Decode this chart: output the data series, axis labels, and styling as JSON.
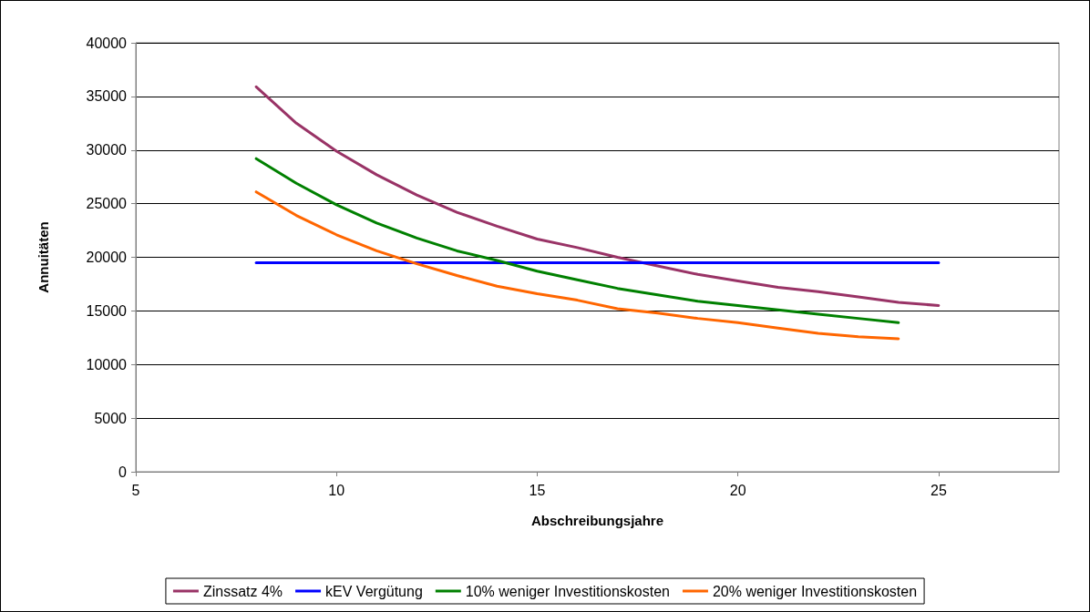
{
  "chart_data": {
    "type": "line",
    "xlabel": "Abschreibungsjahre",
    "ylabel": "Annuitäten",
    "x": [
      8,
      9,
      10,
      11,
      12,
      13,
      14,
      15,
      16,
      17,
      18,
      19,
      20,
      21,
      22,
      23,
      24,
      25
    ],
    "series": [
      {
        "name": "Zinssatz 4%",
        "color": "#993366",
        "values": [
          35900,
          32500,
          29900,
          27700,
          25800,
          24200,
          22900,
          21700,
          20900,
          20000,
          19200,
          18400,
          17800,
          17200,
          16800,
          16300,
          15800,
          15500
        ]
      },
      {
        "name": "kEV Vergütung",
        "color": "#0000ff",
        "values": [
          19500,
          19500,
          19500,
          19500,
          19500,
          19500,
          19500,
          19500,
          19500,
          19500,
          19500,
          19500,
          19500,
          19500,
          19500,
          19500,
          19500,
          19500
        ]
      },
      {
        "name": "10% weniger Investitionskosten",
        "color": "#008000",
        "values": [
          29200,
          26900,
          24900,
          23200,
          21800,
          20600,
          19700,
          18700,
          17900,
          17100,
          16500,
          15900,
          15500,
          15100,
          14700,
          14300,
          13900,
          null
        ]
      },
      {
        "name": "20% weniger Investitionskosten",
        "color": "#ff6600",
        "values": [
          26100,
          23900,
          22100,
          20600,
          19400,
          18300,
          17300,
          16600,
          16000,
          15200,
          14800,
          14300,
          13900,
          13400,
          12900,
          12600,
          12400,
          null
        ]
      }
    ],
    "xlim": [
      5,
      28
    ],
    "xticks": [
      5,
      10,
      15,
      20,
      25
    ],
    "ylim": [
      0,
      40000
    ],
    "yticks": [
      0,
      5000,
      10000,
      15000,
      20000,
      25000,
      30000,
      35000,
      40000
    ],
    "grid": "y",
    "legend": "bottom",
    "marker": "none",
    "line_style": "solid"
  }
}
